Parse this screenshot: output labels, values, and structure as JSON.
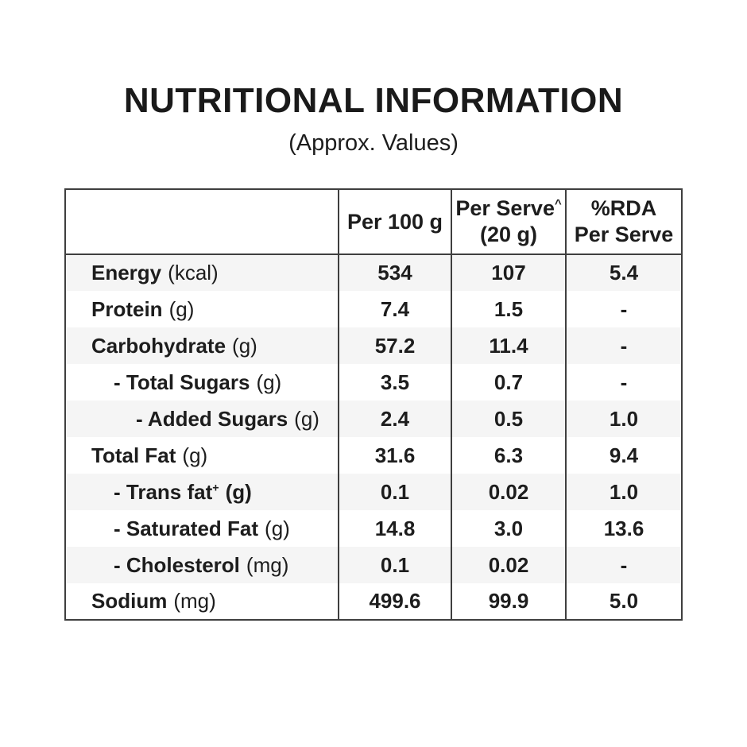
{
  "title": "NUTRITIONAL INFORMATION",
  "subtitle": "(Approx. Values)",
  "table": {
    "header": {
      "label_col": "",
      "per_100g": "Per 100 g",
      "per_serve_line1": "Per Serve",
      "per_serve_sup": "^",
      "per_serve_line2": "(20 g)",
      "rda_line1": "%RDA",
      "rda_line2": "Per Serve"
    },
    "rows": [
      {
        "name": "Energy",
        "unit": "(kcal)",
        "indent": 0,
        "per_100g": "534",
        "per_serve": "107",
        "rda_per_serve": "5.4"
      },
      {
        "name": "Protein",
        "unit": "(g)",
        "indent": 0,
        "per_100g": "7.4",
        "per_serve": "1.5",
        "rda_per_serve": "-"
      },
      {
        "name": "Carbohydrate",
        "unit": "(g)",
        "indent": 0,
        "per_100g": "57.2",
        "per_serve": "11.4",
        "rda_per_serve": "-"
      },
      {
        "name": "- Total Sugars",
        "unit": "(g)",
        "indent": 1,
        "per_100g": "3.5",
        "per_serve": "0.7",
        "rda_per_serve": "-"
      },
      {
        "name": "- Added Sugars",
        "unit": "(g)",
        "indent": 2,
        "per_100g": "2.4",
        "per_serve": "0.5",
        "rda_per_serve": "1.0"
      },
      {
        "name": "Total Fat",
        "unit": "(g)",
        "indent": 0,
        "per_100g": "31.6",
        "per_serve": "6.3",
        "rda_per_serve": "9.4"
      },
      {
        "name": "- Trans fat",
        "sup": "+",
        "unit": "(g)",
        "unit_bold": true,
        "indent": 1,
        "per_100g": "0.1",
        "per_serve": "0.02",
        "rda_per_serve": "1.0"
      },
      {
        "name": "- Saturated Fat",
        "unit": "(g)",
        "indent": 1,
        "per_100g": "14.8",
        "per_serve": "3.0",
        "rda_per_serve": "13.6"
      },
      {
        "name": "- Cholesterol",
        "unit": "(mg)",
        "indent": 1,
        "per_100g": "0.1",
        "per_serve": "0.02",
        "rda_per_serve": "-"
      },
      {
        "name": "Sodium",
        "unit": "(mg)",
        "indent": 0,
        "per_100g": "499.6",
        "per_serve": "99.9",
        "rda_per_serve": "5.0"
      }
    ]
  },
  "colors": {
    "text": "#1d1d1d",
    "border": "#3f3f3f",
    "alt_row_background": "#f5f5f5",
    "background": "#ffffff"
  }
}
